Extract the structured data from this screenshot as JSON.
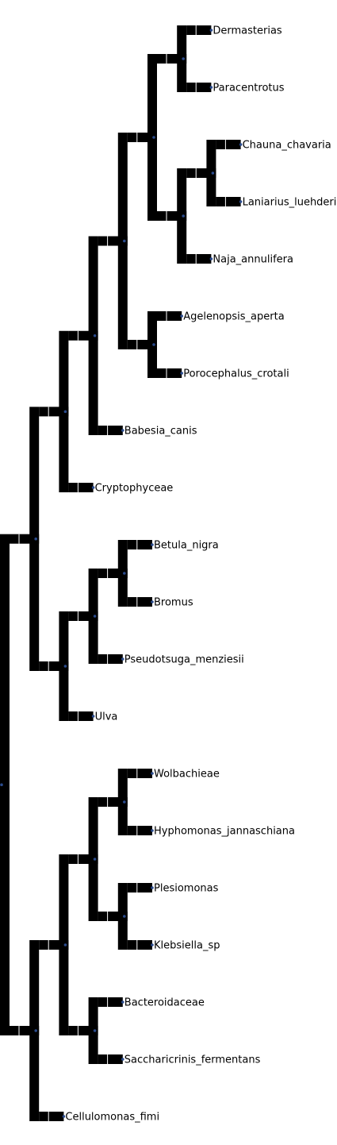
{
  "tree": {
    "branch_color": "#000000",
    "node_dot_color": "#2a4b8d",
    "leaves": [
      "Dermasterias",
      "Paracentrotus",
      "Chauna_chavaria",
      "Laniarius_luehderi",
      "Naja_annulifera",
      "Agelenopsis_aperta",
      "Porocephalus_crotali",
      "Babesia_canis",
      "Cryptophyceae",
      "Betula_nigra",
      "Bromus",
      "Pseudotsuga_menziesii",
      "Ulva",
      "Wolbachieae",
      "Hyphomonas_jannaschiana",
      "Plesiomonas",
      "Klebsiella_sp",
      "Bacteroidaceae",
      "Saccharicrinis_fermentans",
      "Cellulomonas_fimi"
    ],
    "topology": [
      [
        [
          [
            [
              [
                [
                  "Dermasterias",
                  "Paracentrotus"
                ],
                [
                  [
                    "Chauna_chavaria",
                    "Laniarius_luehderi"
                  ],
                  "Naja_annulifera"
                ]
              ],
              [
                "Agelenopsis_aperta",
                "Porocephalus_crotali"
              ]
            ],
            "Babesia_canis"
          ],
          "Cryptophyceae"
        ],
        [
          [
            [
              "Betula_nigra",
              "Bromus"
            ],
            "Pseudotsuga_menziesii"
          ],
          "Ulva"
        ]
      ],
      [
        [
          [
            [
              "Wolbachieae",
              "Hyphomonas_jannaschiana"
            ],
            [
              "Plesiomonas",
              "Klebsiella_sp"
            ]
          ],
          [
            "Bacteroidaceae",
            "Saccharicrinis_fermentans"
          ]
        ],
        "Cellulomonas_fimi"
      ]
    ]
  }
}
